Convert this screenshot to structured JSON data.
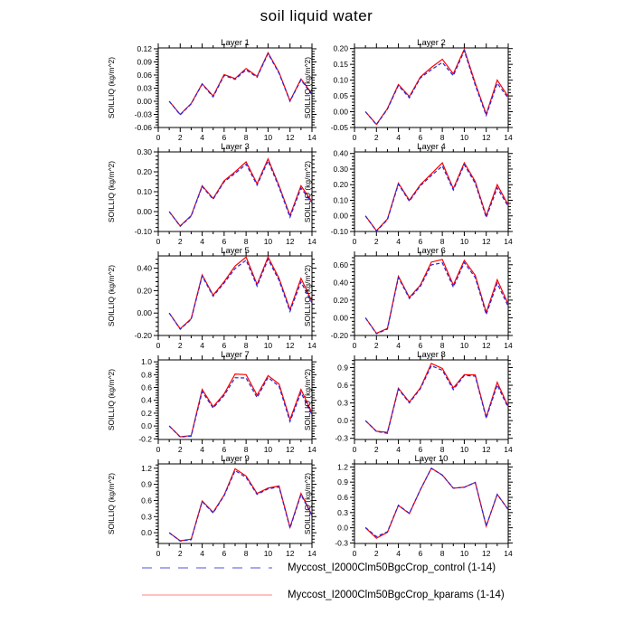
{
  "title": "soil liquid water",
  "legend": {
    "items": [
      {
        "label": "Myccost_I2000Clm50BgcCrop_control (1-14)",
        "style": "dashed",
        "sample_color": "#8c8ce8"
      },
      {
        "label": "Myccost_I2000Clm50BgcCrop_kparams (1-14)",
        "style": "solid",
        "sample_color": "#ff9b9b"
      }
    ]
  },
  "chart_data": {
    "type": "line",
    "suptitle": "soil liquid water",
    "layout": "5 rows x 2 columns of panels, box axes with outward ticks, no grid",
    "series_names": [
      "control",
      "kparams"
    ],
    "colors": {
      "control": "#2626d8",
      "kparams": "#ff0000"
    },
    "line_styles": {
      "control": "dashed",
      "kparams": "solid"
    },
    "x": [
      1,
      2,
      3,
      4,
      5,
      6,
      7,
      8,
      9,
      10,
      11,
      12,
      13,
      14
    ],
    "xlim": [
      0,
      14
    ],
    "xticks": [
      0,
      2,
      4,
      6,
      8,
      10,
      12,
      14
    ],
    "xtick_labels": [
      "0",
      "2",
      "4",
      "6",
      "8",
      "10",
      "12",
      "14"
    ],
    "panels": [
      {
        "title": "Layer 1",
        "ylabel": "SOILLIQ (kg/m^2)",
        "ylim": [
          -0.06,
          0.122
        ],
        "yticks": [
          -0.06,
          -0.03,
          0,
          0.03,
          0.06,
          0.09,
          0.12
        ],
        "ytick_labels": [
          "-0.06",
          "-0.03",
          "0.00",
          "0.03",
          "0.06",
          "0.09",
          "0.12"
        ],
        "control": [
          0.0,
          -0.031,
          -0.006,
          0.039,
          0.01,
          0.059,
          0.05,
          0.072,
          0.055,
          0.109,
          0.064,
          0.0,
          0.049,
          0.015
        ],
        "kparams": [
          0.0,
          -0.03,
          -0.005,
          0.04,
          0.012,
          0.061,
          0.052,
          0.075,
          0.057,
          0.111,
          0.066,
          0.001,
          0.051,
          0.017
        ]
      },
      {
        "title": "Layer 2",
        "ylabel": "SOILLIQ (kg/m^2)",
        "ylim": [
          -0.05,
          0.202
        ],
        "yticks": [
          -0.05,
          0,
          0.05,
          0.1,
          0.15,
          0.2
        ],
        "ytick_labels": [
          "-0.05",
          "0.00",
          "0.05",
          "0.10",
          "0.15",
          "0.20"
        ],
        "control": [
          0.0,
          -0.041,
          0.008,
          0.083,
          0.044,
          0.107,
          0.133,
          0.156,
          0.114,
          0.193,
          0.084,
          -0.012,
          0.09,
          0.043
        ],
        "kparams": [
          0.0,
          -0.04,
          0.01,
          0.086,
          0.048,
          0.11,
          0.14,
          0.166,
          0.12,
          0.198,
          0.09,
          -0.008,
          0.1,
          0.048
        ]
      },
      {
        "title": "Layer 3",
        "ylabel": "SOILLIQ (kg/m^2)",
        "ylim": [
          -0.1,
          0.3
        ],
        "yticks": [
          -0.1,
          0,
          0.1,
          0.2,
          0.3
        ],
        "ytick_labels": [
          "-0.10",
          "0.00",
          "0.10",
          "0.20",
          "0.30"
        ],
        "control": [
          0.0,
          -0.074,
          -0.023,
          0.126,
          0.062,
          0.15,
          0.192,
          0.238,
          0.133,
          0.255,
          0.122,
          -0.028,
          0.118,
          0.044
        ],
        "kparams": [
          0.0,
          -0.072,
          -0.02,
          0.13,
          0.066,
          0.155,
          0.2,
          0.25,
          0.14,
          0.265,
          0.13,
          -0.02,
          0.13,
          0.05
        ]
      },
      {
        "title": "Layer 4",
        "ylabel": "SOILLIQ (kg/m^2)",
        "ylim": [
          -0.1,
          0.41
        ],
        "yticks": [
          -0.1,
          0,
          0.1,
          0.2,
          0.3,
          0.4
        ],
        "ytick_labels": [
          "-0.10",
          "0.00",
          "0.10",
          "0.20",
          "0.30",
          "0.40"
        ],
        "control": [
          0.0,
          -0.098,
          -0.025,
          0.203,
          0.094,
          0.193,
          0.258,
          0.32,
          0.166,
          0.328,
          0.208,
          -0.01,
          0.18,
          0.06
        ],
        "kparams": [
          0.0,
          -0.095,
          -0.02,
          0.21,
          0.1,
          0.2,
          0.27,
          0.34,
          0.175,
          0.34,
          0.22,
          0.0,
          0.2,
          0.07
        ]
      },
      {
        "title": "Layer 5",
        "ylabel": "SOILLIQ (kg/m^2)",
        "ylim": [
          -0.2,
          0.51
        ],
        "yticks": [
          -0.2,
          0,
          0.2,
          0.4
        ],
        "ytick_labels": [
          "-0.20",
          "0.00",
          "0.20",
          "0.40"
        ],
        "control": [
          0.0,
          -0.144,
          -0.056,
          0.33,
          0.15,
          0.268,
          0.398,
          0.472,
          0.24,
          0.48,
          0.292,
          0.015,
          0.278,
          0.09
        ],
        "kparams": [
          0.0,
          -0.14,
          -0.05,
          0.34,
          0.16,
          0.28,
          0.42,
          0.5,
          0.255,
          0.5,
          0.31,
          0.03,
          0.31,
          0.105
        ]
      },
      {
        "title": "Layer 6",
        "ylabel": "SOILLIQ (kg/m^2)",
        "ylim": [
          -0.2,
          0.7
        ],
        "yticks": [
          -0.2,
          0,
          0.2,
          0.4,
          0.6
        ],
        "ytick_labels": [
          "-0.20",
          "0.00",
          "0.20",
          "0.40",
          "0.60"
        ],
        "control": [
          0.0,
          -0.18,
          -0.128,
          0.455,
          0.218,
          0.355,
          0.598,
          0.622,
          0.347,
          0.625,
          0.455,
          0.038,
          0.39,
          0.13
        ],
        "kparams": [
          0.0,
          -0.175,
          -0.12,
          0.47,
          0.23,
          0.37,
          0.63,
          0.66,
          0.37,
          0.65,
          0.48,
          0.06,
          0.43,
          0.155
        ]
      },
      {
        "title": "Layer 7",
        "ylabel": "SOILLIQ (kg/m^2)",
        "ylim": [
          -0.21,
          1.03
        ],
        "yticks": [
          -0.2,
          0,
          0.2,
          0.4,
          0.6,
          0.8,
          1.0
        ],
        "ytick_labels": [
          "-0.2",
          "0.0",
          "0.2",
          "0.4",
          "0.6",
          "0.8",
          "1.0"
        ],
        "control": [
          0.0,
          -0.172,
          -0.158,
          0.535,
          0.28,
          0.477,
          0.752,
          0.748,
          0.443,
          0.757,
          0.62,
          0.07,
          0.52,
          0.175
        ],
        "kparams": [
          0.0,
          -0.168,
          -0.15,
          0.57,
          0.3,
          0.5,
          0.81,
          0.8,
          0.48,
          0.785,
          0.655,
          0.1,
          0.57,
          0.205
        ]
      },
      {
        "title": "Layer 8",
        "ylabel": "SOILLIQ (kg/m^2)",
        "ylim": [
          -0.32,
          1.03
        ],
        "yticks": [
          -0.3,
          0,
          0.3,
          0.6,
          0.9
        ],
        "ytick_labels": [
          "-0.3",
          "0.0",
          "0.3",
          "0.6",
          "0.9"
        ],
        "control": [
          0.0,
          -0.185,
          -0.215,
          0.535,
          0.3,
          0.54,
          0.93,
          0.855,
          0.525,
          0.765,
          0.755,
          0.04,
          0.605,
          0.215
        ],
        "kparams": [
          0.0,
          -0.18,
          -0.198,
          0.55,
          0.315,
          0.555,
          0.97,
          0.885,
          0.555,
          0.78,
          0.775,
          0.06,
          0.65,
          0.24
        ]
      },
      {
        "title": "Layer 9",
        "ylabel": "SOILLIQ (kg/m^2)",
        "ylim": [
          -0.2,
          1.28
        ],
        "yticks": [
          0,
          0.3,
          0.6,
          0.9,
          1.2
        ],
        "ytick_labels": [
          "0.0",
          "0.3",
          "0.6",
          "0.9",
          "1.2"
        ],
        "control": [
          0.0,
          -0.155,
          -0.13,
          0.578,
          0.368,
          0.688,
          1.155,
          1.03,
          0.712,
          0.815,
          0.852,
          0.085,
          0.708,
          0.315
        ],
        "kparams": [
          0.0,
          -0.15,
          -0.12,
          0.59,
          0.38,
          0.7,
          1.19,
          1.055,
          0.73,
          0.83,
          0.87,
          0.1,
          0.73,
          0.33
        ]
      },
      {
        "title": "Layer 10",
        "ylabel": "SOILLIQ (kg/m^2)",
        "ylim": [
          -0.31,
          1.26
        ],
        "yticks": [
          -0.3,
          0,
          0.3,
          0.6,
          0.9,
          1.2
        ],
        "ytick_labels": [
          "-0.3",
          "0.0",
          "0.3",
          "0.6",
          "0.9",
          "1.2"
        ],
        "control": [
          0.005,
          -0.175,
          -0.08,
          0.445,
          0.285,
          0.752,
          1.172,
          1.038,
          0.782,
          0.798,
          0.893,
          0.035,
          0.658,
          0.358
        ],
        "kparams": [
          0.0,
          -0.205,
          -0.09,
          0.44,
          0.28,
          0.75,
          1.175,
          1.04,
          0.78,
          0.8,
          0.895,
          0.03,
          0.66,
          0.36
        ]
      }
    ]
  }
}
